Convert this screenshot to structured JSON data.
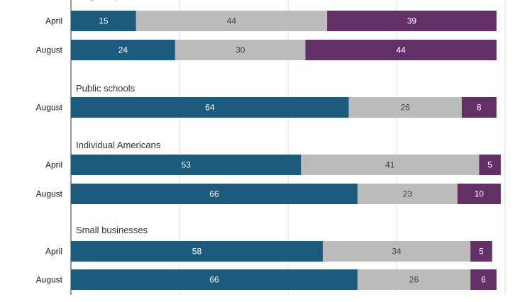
{
  "chart_data": {
    "type": "bar",
    "orientation": "horizontal",
    "stacked": true,
    "xlim": [
      0,
      100
    ],
    "x_ticks": [
      "0",
      "25",
      "50",
      "75",
      "100"
    ],
    "grid": true,
    "segment_colors": [
      "#1b5c7e",
      "#bbbbbb",
      "#622f66"
    ],
    "segment_label_colors": [
      "#ffffff",
      "#444444",
      "#ffffff"
    ],
    "groups": [
      {
        "title": "Large corporations",
        "rows": [
          {
            "label": "April",
            "values": [
              15,
              44,
              39
            ]
          },
          {
            "label": "August",
            "values": [
              24,
              30,
              44
            ]
          }
        ]
      },
      {
        "title": "Public schools",
        "rows": [
          {
            "label": "August",
            "values": [
              64,
              26,
              8
            ]
          }
        ]
      },
      {
        "title": "Individual Americans",
        "rows": [
          {
            "label": "April",
            "values": [
              53,
              41,
              5
            ]
          },
          {
            "label": "August",
            "values": [
              66,
              23,
              10
            ]
          }
        ]
      },
      {
        "title": "Small businesses",
        "rows": [
          {
            "label": "April",
            "values": [
              58,
              34,
              5
            ]
          },
          {
            "label": "August",
            "values": [
              66,
              26,
              6
            ]
          }
        ]
      }
    ]
  }
}
